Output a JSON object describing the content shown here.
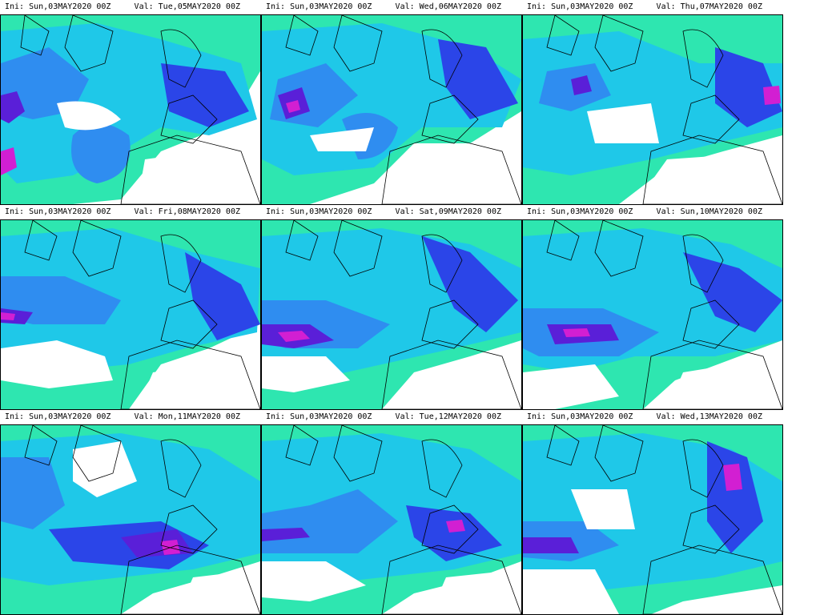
{
  "figure": {
    "panels": [
      {
        "ini": "Ini: Sun,03MAY2020 00Z",
        "valid": "Val: Tue,05MAY2020 00Z"
      },
      {
        "ini": "Ini: Sun,03MAY2020 00Z",
        "valid": "Val: Wed,06MAY2020 00Z"
      },
      {
        "ini": "Ini: Sun,03MAY2020 00Z",
        "valid": "Val: Thu,07MAY2020 00Z"
      },
      {
        "ini": "Ini: Sun,03MAY2020 00Z",
        "valid": "Val: Fri,08MAY2020 00Z"
      },
      {
        "ini": "Ini: Sun,03MAY2020 00Z",
        "valid": "Val: Sat,09MAY2020 00Z"
      },
      {
        "ini": "Ini: Sun,03MAY2020 00Z",
        "valid": "Val: Sun,10MAY2020 00Z"
      },
      {
        "ini": "Ini: Sun,03MAY2020 00Z",
        "valid": "Val: Mon,11MAY2020 00Z"
      },
      {
        "ini": "Ini: Sun,03MAY2020 00Z",
        "valid": "Val: Tue,12MAY2020 00Z"
      },
      {
        "ini": "Ini: Sun,03MAY2020 00Z",
        "valid": "Val: Wed,13MAY2020 00Z"
      }
    ],
    "colors": {
      "light": "#2ee6b0",
      "cyan": "#1fc8e8",
      "sky": "#2f8df0",
      "blue": "#2b45e8",
      "indigo": "#5a1fd8",
      "magenta": "#d21fd2",
      "coast": "#000000",
      "background": "#ffffff"
    }
  }
}
